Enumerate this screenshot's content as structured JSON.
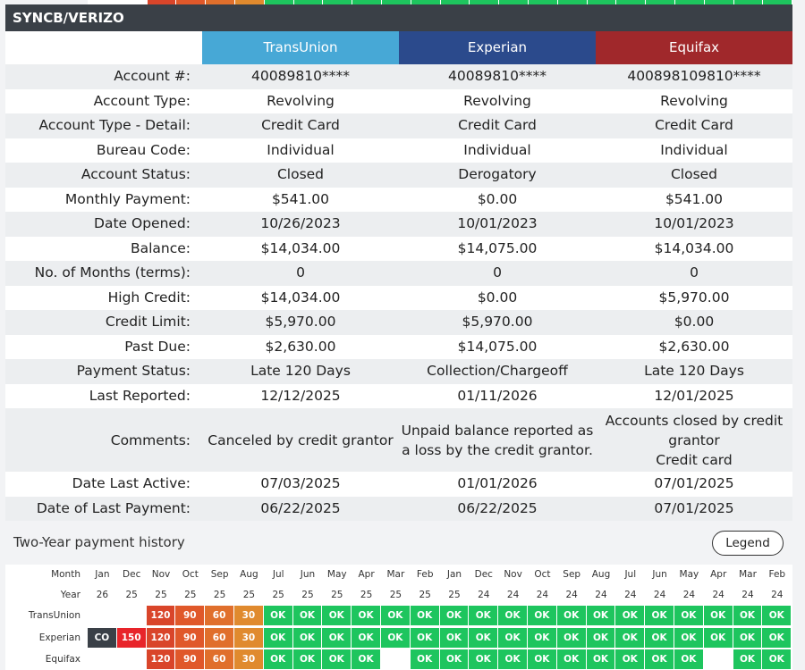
{
  "account_name": "SYNCB/VERIZO",
  "colors": {
    "transunion": "#47a8d6",
    "experian": "#2b4a8c",
    "equifax": "#a0282b",
    "header": "#3a4047",
    "ok": "#1ec55e",
    "late30": "#e08a2e",
    "late60": "#e06f2c",
    "late90": "#e0582a",
    "late120": "#d9452a",
    "late150": "#e8242a",
    "co": "#3a4047"
  },
  "bureaus": [
    "TransUnion",
    "Experian",
    "Equifax"
  ],
  "rows": [
    {
      "label": "Account #:",
      "values": [
        "40089810****",
        "40089810****",
        "400898109810****"
      ]
    },
    {
      "label": "Account Type:",
      "values": [
        "Revolving",
        "Revolving",
        "Revolving"
      ]
    },
    {
      "label": "Account Type - Detail:",
      "values": [
        "Credit Card",
        "Credit Card",
        "Credit Card"
      ]
    },
    {
      "label": "Bureau Code:",
      "values": [
        "Individual",
        "Individual",
        "Individual"
      ]
    },
    {
      "label": "Account Status:",
      "values": [
        "Closed",
        "Derogatory",
        "Closed"
      ]
    },
    {
      "label": "Monthly Payment:",
      "values": [
        "$541.00",
        "$0.00",
        "$541.00"
      ]
    },
    {
      "label": "Date Opened:",
      "values": [
        "10/26/2023",
        "10/01/2023",
        "10/01/2023"
      ]
    },
    {
      "label": "Balance:",
      "values": [
        "$14,034.00",
        "$14,075.00",
        "$14,034.00"
      ]
    },
    {
      "label": "No. of Months (terms):",
      "values": [
        "0",
        "0",
        "0"
      ]
    },
    {
      "label": "High Credit:",
      "values": [
        "$14,034.00",
        "$0.00",
        "$5,970.00"
      ]
    },
    {
      "label": "Credit Limit:",
      "values": [
        "$5,970.00",
        "$5,970.00",
        "$0.00"
      ]
    },
    {
      "label": "Past Due:",
      "values": [
        "$2,630.00",
        "$14,075.00",
        "$2,630.00"
      ]
    },
    {
      "label": "Payment Status:",
      "values": [
        "Late 120 Days",
        "Collection/Chargeoff",
        "Late 120 Days"
      ]
    },
    {
      "label": "Last Reported:",
      "values": [
        "12/12/2025",
        "01/11/2026",
        "12/01/2025"
      ]
    },
    {
      "label": "Comments:",
      "tall": true,
      "values": [
        "Canceled by credit grantor",
        "Unpaid balance reported as a loss by the credit grantor.",
        "Accounts closed by credit grantor\nCredit card"
      ]
    },
    {
      "label": "Date Last Active:",
      "values": [
        "07/03/2025",
        "01/01/2026",
        "07/01/2025"
      ]
    },
    {
      "label": "Date of Last Payment:",
      "values": [
        "06/22/2025",
        "06/22/2025",
        "07/01/2025"
      ]
    }
  ],
  "history": {
    "title": "Two-Year payment history",
    "legend_label": "Legend",
    "month_label": "Month",
    "year_label": "Year",
    "months": [
      "Jan",
      "Dec",
      "Nov",
      "Oct",
      "Sep",
      "Aug",
      "Jul",
      "Jun",
      "May",
      "Apr",
      "Mar",
      "Feb",
      "Jan",
      "Dec",
      "Nov",
      "Oct",
      "Sep",
      "Aug",
      "Jul",
      "Jun",
      "May",
      "Apr",
      "Mar",
      "Feb"
    ],
    "years": [
      "26",
      "25",
      "25",
      "25",
      "25",
      "25",
      "25",
      "25",
      "25",
      "25",
      "25",
      "25",
      "25",
      "24",
      "24",
      "24",
      "24",
      "24",
      "24",
      "24",
      "24",
      "24",
      "24",
      "24"
    ],
    "rows": [
      {
        "name": "TransUnion",
        "statuses": [
          "",
          "",
          "120",
          "90",
          "60",
          "30",
          "OK",
          "OK",
          "OK",
          "OK",
          "OK",
          "OK",
          "OK",
          "OK",
          "OK",
          "OK",
          "OK",
          "OK",
          "OK",
          "OK",
          "OK",
          "OK",
          "OK",
          "OK"
        ]
      },
      {
        "name": "Experian",
        "statuses": [
          "CO",
          "150",
          "120",
          "90",
          "60",
          "30",
          "OK",
          "OK",
          "OK",
          "OK",
          "OK",
          "OK",
          "OK",
          "OK",
          "OK",
          "OK",
          "OK",
          "OK",
          "OK",
          "OK",
          "OK",
          "OK",
          "OK",
          "OK"
        ]
      },
      {
        "name": "Equifax",
        "statuses": [
          "",
          "",
          "120",
          "90",
          "60",
          "30",
          "OK",
          "OK",
          "OK",
          "OK",
          "",
          "OK",
          "OK",
          "OK",
          "OK",
          "OK",
          "OK",
          "OK",
          "OK",
          "OK",
          "OK",
          "",
          "OK",
          "OK"
        ]
      }
    ]
  },
  "top_strip": [
    "",
    "",
    "120",
    "90",
    "60",
    "30",
    "OK",
    "OK",
    "OK",
    "OK",
    "OK",
    "OK",
    "OK",
    "OK",
    "OK",
    "OK",
    "OK",
    "OK",
    "OK",
    "OK",
    "OK",
    "OK",
    "OK",
    "OK"
  ]
}
